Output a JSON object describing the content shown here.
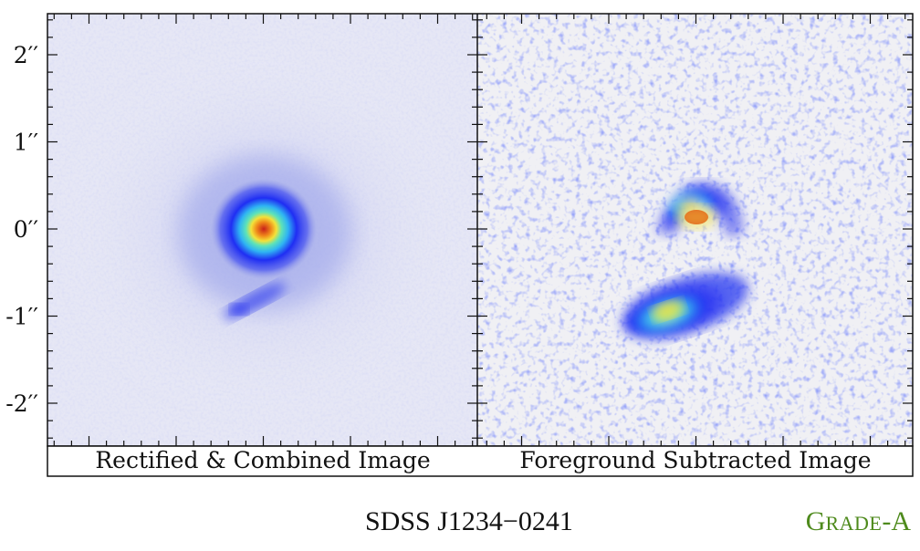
{
  "panels": [
    {
      "caption": "Rectified & Combined Image"
    },
    {
      "caption": "Foreground Subtracted Image"
    }
  ],
  "y_axis": {
    "tick_labels": [
      "2′′",
      "1′′",
      "0′′",
      "-1′′",
      "-2′′"
    ],
    "tick_values": [
      2,
      1,
      0,
      -1,
      -2
    ]
  },
  "object_name": "SDSS J1234−0241",
  "grade": {
    "prefix": "G",
    "rest": "RADE",
    "suffix": "-A"
  },
  "colors": {
    "background_left": "#e6e7f5",
    "background_right": "#f0f0f4",
    "diffuse_halo": "#9fa6ec",
    "blue": "#1f2ef3",
    "cyan": "#3fd3f0",
    "yellow": "#f3e23a",
    "red": "#d8261a",
    "grade_green": "#4e8a1c"
  }
}
